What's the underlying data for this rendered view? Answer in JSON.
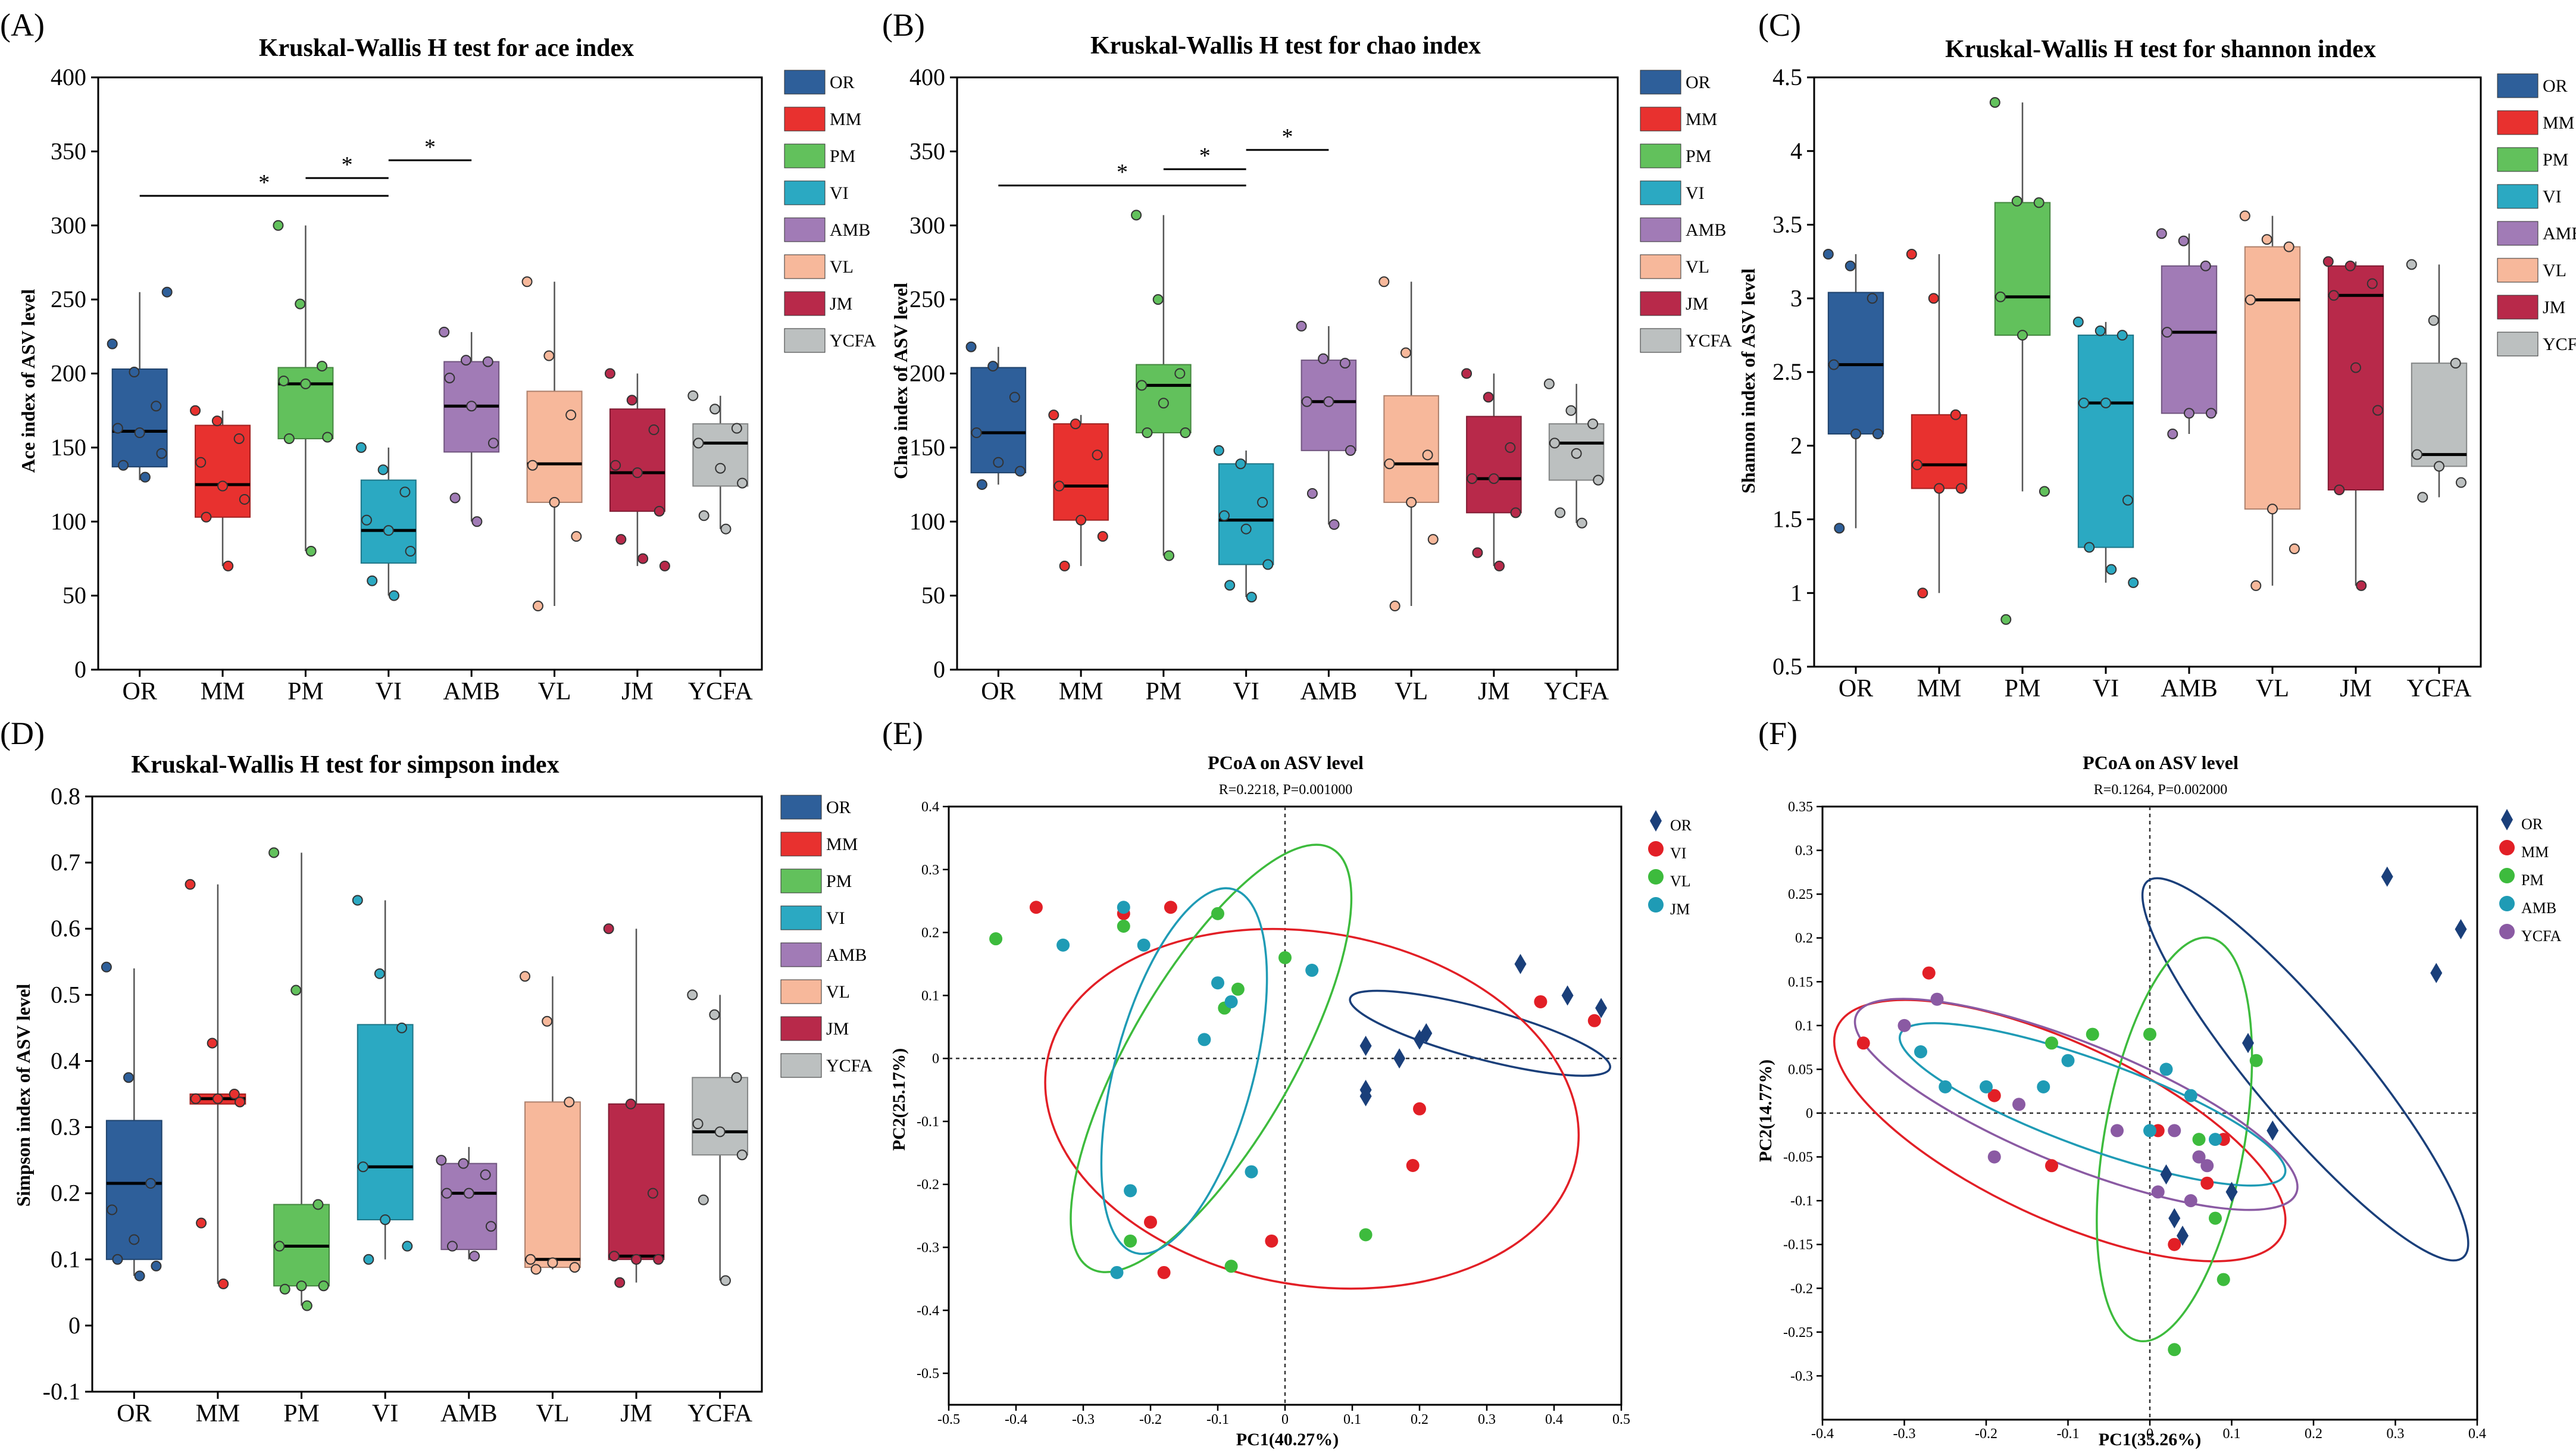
{
  "figure": {
    "groups": [
      "OR",
      "MM",
      "PM",
      "VI",
      "AMB",
      "VL",
      "JM",
      "YCFA"
    ],
    "group_colors": {
      "OR": "#2e5f9a",
      "MM": "#e8312f",
      "PM": "#62c15c",
      "VI": "#2ba9c2",
      "AMB": "#a17bb6",
      "VL": "#f7b89b",
      "JM": "#b8294a",
      "YCFA": "#bcc0c0"
    }
  },
  "chart_data": [
    {
      "type": "box",
      "panel": "(A)",
      "title": "Kruskal-Wallis H test for ace index",
      "xlabel": "",
      "ylabel": "Ace index of ASV level",
      "ylim": [
        0,
        400
      ],
      "yticks": [
        "0",
        "50",
        "100",
        "150",
        "200",
        "250",
        "300",
        "350",
        "400"
      ],
      "categories": [
        "OR",
        "MM",
        "PM",
        "VI",
        "AMB",
        "VL",
        "JM",
        "YCFA"
      ],
      "boxes": [
        {
          "q1": 137,
          "median": 161,
          "q3": 203,
          "lo": 128,
          "hi": 255
        },
        {
          "q1": 103,
          "median": 125,
          "q3": 165,
          "lo": 70,
          "hi": 175
        },
        {
          "q1": 156,
          "median": 193,
          "q3": 204,
          "lo": 80,
          "hi": 300
        },
        {
          "q1": 72,
          "median": 94,
          "q3": 128,
          "lo": 50,
          "hi": 150
        },
        {
          "q1": 147,
          "median": 178,
          "q3": 208,
          "lo": 100,
          "hi": 228
        },
        {
          "q1": 113,
          "median": 139,
          "q3": 188,
          "lo": 43,
          "hi": 262
        },
        {
          "q1": 107,
          "median": 133,
          "q3": 176,
          "lo": 70,
          "hi": 200
        },
        {
          "q1": 124,
          "median": 153,
          "q3": 166,
          "lo": 95,
          "hi": 185
        }
      ],
      "points": [
        [
          220,
          201,
          178,
          163,
          160,
          146,
          138,
          130,
          255
        ],
        [
          175,
          168,
          156,
          140,
          124,
          115,
          103,
          70
        ],
        [
          300,
          247,
          205,
          195,
          193,
          157,
          156,
          80
        ],
        [
          150,
          135,
          120,
          101,
          94,
          80,
          60,
          50
        ],
        [
          228,
          209,
          208,
          197,
          178,
          153,
          116,
          100
        ],
        [
          262,
          212,
          172,
          138,
          113,
          90,
          43
        ],
        [
          200,
          182,
          162,
          138,
          133,
          107,
          88,
          75,
          70
        ],
        [
          185,
          176,
          163,
          153,
          136,
          126,
          104,
          95
        ]
      ],
      "significance": [
        {
          "from": "OR",
          "to": "VI",
          "label": "*",
          "y": 320
        },
        {
          "from": "PM",
          "to": "VI",
          "label": "*",
          "y": 332
        },
        {
          "from": "VI",
          "to": "AMB",
          "label": "*",
          "y": 344
        }
      ],
      "legend": "right"
    },
    {
      "type": "box",
      "panel": "(B)",
      "title": "Kruskal-Wallis H test for chao index",
      "xlabel": "",
      "ylabel": "Chao index of ASV level",
      "ylim": [
        0,
        400
      ],
      "yticks": [
        "0",
        "50",
        "100",
        "150",
        "200",
        "250",
        "300",
        "350",
        "400"
      ],
      "categories": [
        "OR",
        "MM",
        "PM",
        "VI",
        "AMB",
        "VL",
        "JM",
        "YCFA"
      ],
      "boxes": [
        {
          "q1": 133,
          "median": 160,
          "q3": 204,
          "lo": 125,
          "hi": 218
        },
        {
          "q1": 101,
          "median": 124,
          "q3": 166,
          "lo": 70,
          "hi": 172
        },
        {
          "q1": 160,
          "median": 192,
          "q3": 206,
          "lo": 77,
          "hi": 307
        },
        {
          "q1": 71,
          "median": 101,
          "q3": 139,
          "lo": 49,
          "hi": 148
        },
        {
          "q1": 148,
          "median": 181,
          "q3": 209,
          "lo": 98,
          "hi": 232
        },
        {
          "q1": 113,
          "median": 139,
          "q3": 185,
          "lo": 43,
          "hi": 262
        },
        {
          "q1": 106,
          "median": 129,
          "q3": 171,
          "lo": 70,
          "hi": 200
        },
        {
          "q1": 128,
          "median": 153,
          "q3": 166,
          "lo": 99,
          "hi": 193
        }
      ],
      "points": [
        [
          218,
          205,
          184,
          160,
          140,
          134,
          125
        ],
        [
          172,
          166,
          145,
          124,
          101,
          90,
          70
        ],
        [
          307,
          250,
          200,
          192,
          180,
          160,
          160,
          77
        ],
        [
          148,
          139,
          113,
          104,
          95,
          71,
          57,
          49
        ],
        [
          232,
          210,
          207,
          181,
          181,
          148,
          119,
          98
        ],
        [
          262,
          214,
          145,
          139,
          113,
          88,
          43
        ],
        [
          200,
          184,
          150,
          129,
          129,
          106,
          79,
          70
        ],
        [
          193,
          175,
          166,
          153,
          146,
          128,
          106,
          99
        ]
      ],
      "significance": [
        {
          "from": "OR",
          "to": "VI",
          "label": "*",
          "y": 327
        },
        {
          "from": "PM",
          "to": "VI",
          "label": "*",
          "y": 338
        },
        {
          "from": "VI",
          "to": "AMB",
          "label": "*",
          "y": 351
        }
      ],
      "legend": "right"
    },
    {
      "type": "box",
      "panel": "(C)",
      "title": "Kruskal-Wallis H test for shannon index",
      "xlabel": "",
      "ylabel": "Shannon index of ASV level",
      "ylim": [
        0.5,
        4.5
      ],
      "yticks": [
        "0.5",
        "1",
        "1.5",
        "2",
        "2.5",
        "3",
        "3.5",
        "4",
        "4.5"
      ],
      "categories": [
        "OR",
        "MM",
        "PM",
        "VI",
        "AMB",
        "VL",
        "JM",
        "YCFA"
      ],
      "boxes": [
        {
          "q1": 2.08,
          "median": 2.55,
          "q3": 3.04,
          "lo": 1.44,
          "hi": 3.3
        },
        {
          "q1": 1.71,
          "median": 1.87,
          "q3": 2.21,
          "lo": 1.0,
          "hi": 3.3
        },
        {
          "q1": 2.75,
          "median": 3.01,
          "q3": 3.65,
          "lo": 1.69,
          "hi": 4.33
        },
        {
          "q1": 1.31,
          "median": 2.29,
          "q3": 2.75,
          "lo": 1.07,
          "hi": 2.84
        },
        {
          "q1": 2.22,
          "median": 2.77,
          "q3": 3.22,
          "lo": 2.08,
          "hi": 3.44
        },
        {
          "q1": 1.57,
          "median": 2.99,
          "q3": 3.35,
          "lo": 1.05,
          "hi": 3.56
        },
        {
          "q1": 1.7,
          "median": 3.02,
          "q3": 3.22,
          "lo": 1.05,
          "hi": 3.25
        },
        {
          "q1": 1.86,
          "median": 1.94,
          "q3": 2.56,
          "lo": 1.65,
          "hi": 3.23
        }
      ],
      "points": [
        [
          3.3,
          3.22,
          3.0,
          2.55,
          2.08,
          2.08,
          1.44
        ],
        [
          3.3,
          3.0,
          2.21,
          1.87,
          1.71,
          1.71,
          1.0
        ],
        [
          4.33,
          3.66,
          3.65,
          3.01,
          2.75,
          1.69,
          0.82
        ],
        [
          2.84,
          2.78,
          2.75,
          2.29,
          2.29,
          1.63,
          1.31,
          1.16,
          1.07
        ],
        [
          3.44,
          3.39,
          3.22,
          2.77,
          2.22,
          2.22,
          2.08
        ],
        [
          3.56,
          3.4,
          3.35,
          2.99,
          1.57,
          1.3,
          1.05
        ],
        [
          3.25,
          3.22,
          3.1,
          3.02,
          2.53,
          2.24,
          1.7,
          1.05
        ],
        [
          3.23,
          2.85,
          2.56,
          1.94,
          1.86,
          1.75,
          1.65
        ]
      ],
      "significance": [],
      "legend": "right"
    },
    {
      "type": "box",
      "panel": "(D)",
      "title": "Kruskal-Wallis H test for simpson index",
      "xlabel": "",
      "ylabel": "Simpson index of ASV level",
      "ylim": [
        -0.1,
        0.8
      ],
      "yticks": [
        "-0.1",
        "0",
        "0.1",
        "0.2",
        "0.3",
        "0.4",
        "0.5",
        "0.6",
        "0.7",
        "0.8"
      ],
      "categories": [
        "OR",
        "MM",
        "PM",
        "VI",
        "AMB",
        "VL",
        "JM",
        "YCFA"
      ],
      "boxes": [
        {
          "q1": 0.1,
          "median": 0.215,
          "q3": 0.31,
          "lo": 0.075,
          "hi": 0.54
        },
        {
          "q1": 0.335,
          "median": 0.343,
          "q3": 0.35,
          "lo": 0.063,
          "hi": 0.667
        },
        {
          "q1": 0.06,
          "median": 0.12,
          "q3": 0.183,
          "lo": 0.03,
          "hi": 0.715
        },
        {
          "q1": 0.16,
          "median": 0.24,
          "q3": 0.455,
          "lo": 0.1,
          "hi": 0.643
        },
        {
          "q1": 0.115,
          "median": 0.2,
          "q3": 0.245,
          "lo": 0.1,
          "hi": 0.27
        },
        {
          "q1": 0.088,
          "median": 0.1,
          "q3": 0.338,
          "lo": 0.085,
          "hi": 0.528
        },
        {
          "q1": 0.1,
          "median": 0.105,
          "q3": 0.335,
          "lo": 0.065,
          "hi": 0.6
        },
        {
          "q1": 0.258,
          "median": 0.293,
          "q3": 0.375,
          "lo": 0.068,
          "hi": 0.5
        }
      ],
      "points": [
        [
          0.542,
          0.375,
          0.215,
          0.175,
          0.13,
          0.09,
          0.1,
          0.075
        ],
        [
          0.667,
          0.427,
          0.35,
          0.343,
          0.343,
          0.338,
          0.155,
          0.063
        ],
        [
          0.715,
          0.507,
          0.183,
          0.12,
          0.06,
          0.06,
          0.055,
          0.03
        ],
        [
          0.643,
          0.532,
          0.45,
          0.24,
          0.16,
          0.12,
          0.1
        ],
        [
          0.25,
          0.245,
          0.228,
          0.2,
          0.2,
          0.15,
          0.12,
          0.105
        ],
        [
          0.528,
          0.46,
          0.338,
          0.1,
          0.095,
          0.088,
          0.085
        ],
        [
          0.6,
          0.335,
          0.2,
          0.105,
          0.1,
          0.1,
          0.065
        ],
        [
          0.5,
          0.47,
          0.375,
          0.305,
          0.293,
          0.258,
          0.19,
          0.068
        ]
      ],
      "significance": [],
      "legend": "right"
    },
    {
      "type": "scatter",
      "panel": "(E)",
      "title": "PCoA on ASV level",
      "subtitle": "R=0.2218, P=0.001000",
      "xlabel": "PC1(40.27%)",
      "ylabel": "PC2(25.17%)",
      "xlim": [
        -0.5,
        0.5
      ],
      "ylim": [
        -0.55,
        0.4
      ],
      "xticks": [
        "-0.5",
        "-0.4",
        "-0.3",
        "-0.2",
        "-0.1",
        "0",
        "0.1",
        "0.2",
        "0.3",
        "0.4",
        "0.5"
      ],
      "yticks": [
        "-0.5",
        "-0.4",
        "-0.3",
        "-0.2",
        "-0.1",
        "0",
        "0.1",
        "0.2",
        "0.3",
        "0.4"
      ],
      "series": [
        {
          "name": "OR",
          "marker": "diamond",
          "color": "#1a3f7a",
          "x": [
            0.12,
            0.12,
            0.17,
            0.2,
            0.21,
            0.35,
            0.42,
            0.47,
            0.12
          ],
          "y": [
            0.02,
            -0.05,
            0.0,
            0.03,
            0.04,
            0.15,
            0.1,
            0.08,
            -0.06
          ],
          "ellipse": {
            "cx": 0.29,
            "cy": 0.04,
            "rx": 0.2,
            "ry": 0.04,
            "angle_deg": -15
          }
        },
        {
          "name": "VI",
          "marker": "circle",
          "color": "#e21f26",
          "x": [
            -0.37,
            -0.24,
            -0.17,
            -0.2,
            -0.18,
            -0.02,
            0.19,
            0.2,
            0.38,
            0.46
          ],
          "y": [
            0.24,
            0.23,
            0.24,
            -0.26,
            -0.34,
            -0.29,
            -0.17,
            -0.08,
            0.09,
            0.06
          ],
          "ellipse": {
            "cx": 0.04,
            "cy": -0.08,
            "rx": 0.4,
            "ry": 0.28,
            "angle_deg": -10
          }
        },
        {
          "name": "VL",
          "marker": "circle",
          "color": "#3dbb3d",
          "x": [
            -0.43,
            -0.24,
            -0.1,
            -0.07,
            -0.09,
            0.0,
            -0.08,
            0.12,
            -0.23
          ],
          "y": [
            0.19,
            0.21,
            0.23,
            0.11,
            0.08,
            0.16,
            -0.33,
            -0.28,
            -0.29
          ],
          "ellipse": {
            "cx": -0.11,
            "cy": 0.0,
            "rx": 0.36,
            "ry": 0.13,
            "angle_deg": 60
          }
        },
        {
          "name": "JM",
          "marker": "circle",
          "color": "#1f9bb5",
          "x": [
            -0.33,
            -0.24,
            -0.21,
            -0.1,
            -0.12,
            -0.08,
            -0.05,
            0.04,
            -0.23,
            -0.25
          ],
          "y": [
            0.18,
            0.24,
            0.18,
            0.12,
            0.03,
            0.09,
            -0.18,
            0.14,
            -0.21,
            -0.34
          ],
          "ellipse": {
            "cx": -0.15,
            "cy": -0.02,
            "rx": 0.28,
            "ry": 0.11,
            "angle_deg": 75
          }
        }
      ],
      "legend": "top-right"
    },
    {
      "type": "scatter",
      "panel": "(F)",
      "title": "PCoA on ASV level",
      "subtitle": "R=0.1264, P=0.002000",
      "xlabel": "PC1(35.26%)",
      "ylabel": "PC2(14.77%)",
      "xlim": [
        -0.4,
        0.4
      ],
      "ylim": [
        -0.35,
        0.35
      ],
      "xticks": [
        "-0.4",
        "-0.3",
        "-0.2",
        "-0.1",
        "0",
        "0.1",
        "0.2",
        "0.3",
        "0.4"
      ],
      "yticks": [
        "-0.3",
        "-0.25",
        "-0.2",
        "-0.15",
        "-0.1",
        "-0.05",
        "0",
        "0.05",
        "0.1",
        "0.15",
        "0.2",
        "0.25",
        "0.3",
        "0.35"
      ],
      "series": [
        {
          "name": "OR",
          "marker": "diamond",
          "color": "#1a3f7a",
          "x": [
            0.29,
            0.38,
            0.35,
            0.15,
            0.12,
            0.1,
            0.02,
            0.04,
            0.03
          ],
          "y": [
            0.27,
            0.21,
            0.16,
            -0.02,
            0.08,
            -0.09,
            -0.07,
            -0.14,
            -0.12
          ],
          "ellipse": {
            "cx": 0.19,
            "cy": 0.05,
            "rx": 0.3,
            "ry": 0.06,
            "angle_deg": -50
          }
        },
        {
          "name": "MM",
          "marker": "circle",
          "color": "#e21f26",
          "x": [
            -0.35,
            -0.27,
            -0.19,
            -0.12,
            0.01,
            0.03,
            0.07,
            0.09
          ],
          "y": [
            0.08,
            0.16,
            0.02,
            -0.06,
            -0.02,
            -0.15,
            -0.08,
            -0.03
          ],
          "ellipse": {
            "cx": -0.11,
            "cy": -0.02,
            "rx": 0.3,
            "ry": 0.1,
            "angle_deg": -25
          }
        },
        {
          "name": "PM",
          "marker": "circle",
          "color": "#3dbb3d",
          "x": [
            -0.12,
            -0.07,
            0.0,
            0.06,
            0.08,
            0.13,
            0.09,
            0.03,
            0.06
          ],
          "y": [
            0.08,
            0.09,
            0.09,
            -0.05,
            -0.12,
            0.06,
            -0.19,
            -0.27,
            -0.03
          ],
          "ellipse": {
            "cx": 0.03,
            "cy": -0.03,
            "rx": 0.25,
            "ry": 0.08,
            "angle_deg": 80
          }
        },
        {
          "name": "AMB",
          "marker": "circle",
          "color": "#1f9bb5",
          "x": [
            -0.28,
            -0.25,
            -0.2,
            -0.13,
            -0.1,
            0.0,
            0.05,
            0.02,
            0.08
          ],
          "y": [
            0.07,
            0.03,
            0.03,
            0.03,
            0.06,
            -0.02,
            0.02,
            0.05,
            -0.03
          ],
          "ellipse": {
            "cx": -0.07,
            "cy": 0.01,
            "rx": 0.25,
            "ry": 0.05,
            "angle_deg": -20
          }
        },
        {
          "name": "YCFA",
          "marker": "circle",
          "color": "#8a5aa3",
          "x": [
            -0.3,
            -0.26,
            -0.19,
            -0.16,
            -0.04,
            0.01,
            0.03,
            0.05,
            0.07,
            0.06
          ],
          "y": [
            0.1,
            0.13,
            -0.05,
            0.01,
            -0.02,
            -0.09,
            -0.02,
            -0.1,
            -0.06,
            -0.05
          ],
          "ellipse": {
            "cx": -0.09,
            "cy": 0.01,
            "rx": 0.29,
            "ry": 0.07,
            "angle_deg": -22
          }
        }
      ],
      "legend": "top-right"
    }
  ]
}
